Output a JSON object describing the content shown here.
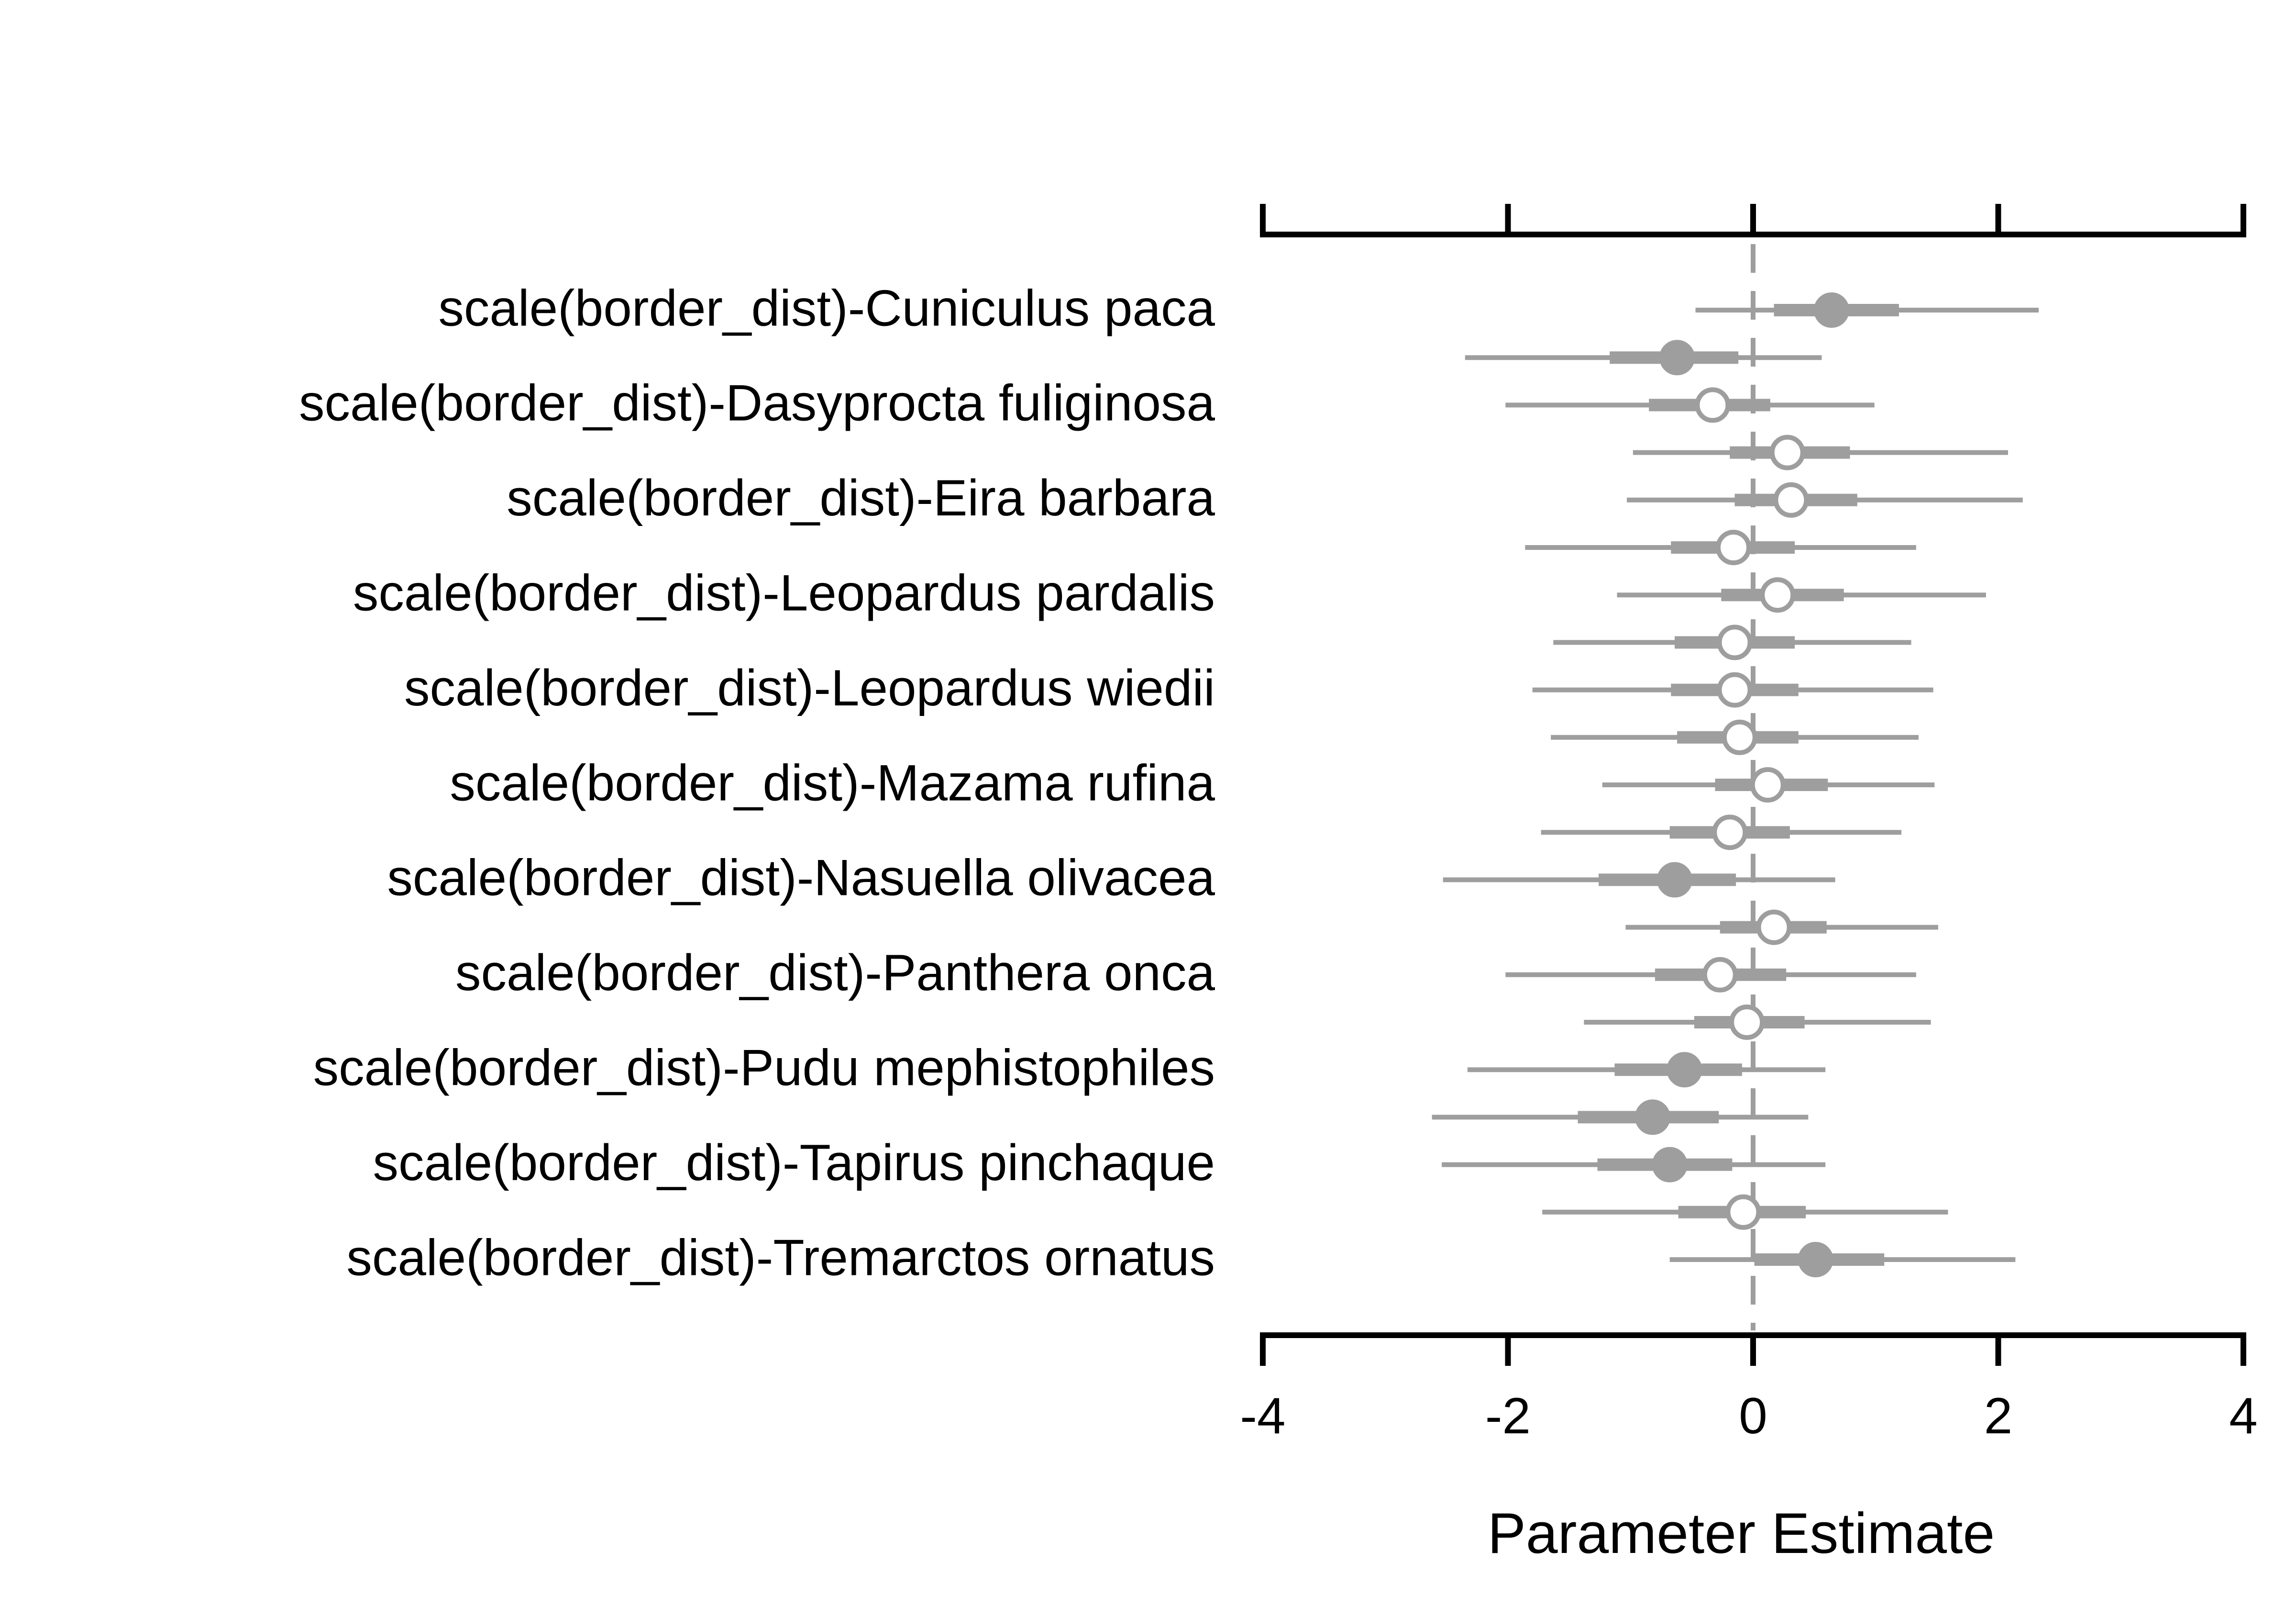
{
  "chart_data": {
    "type": "forest",
    "title": "",
    "xlabel": "Parameter Estimate",
    "ylabel": "",
    "xlim": [
      -4,
      4
    ],
    "xticks": [
      -4,
      -2,
      0,
      2,
      4
    ],
    "xtick_labels": [
      "-4",
      "-2",
      "0",
      "2",
      "4"
    ],
    "reference_line": 0,
    "grid": false,
    "colors": {
      "estimate": "#9e9e9e",
      "axis": "#000000",
      "open_fill": "#ffffff"
    },
    "labels": [
      "scale(border_dist)-Cuniculus paca",
      "scale(border_dist)-Dasyprocta fuliginosa",
      "scale(border_dist)-Eira barbara",
      "scale(border_dist)-Leopardus pardalis",
      "scale(border_dist)-Leopardus wiedii",
      "scale(border_dist)-Mazama rufina",
      "scale(border_dist)-Nasuella olivacea",
      "scale(border_dist)-Panthera onca",
      "scale(border_dist)-Pudu mephistophiles",
      "scale(border_dist)-Tapirus pinchaque",
      "scale(border_dist)-Tremarctos ornatus"
    ],
    "points": [
      {
        "est": 0.64,
        "lo95": -0.47,
        "hi95": 2.33,
        "lo50": 0.17,
        "hi50": 1.19,
        "filled": true
      },
      {
        "est": -0.62,
        "lo95": -2.35,
        "hi95": 0.56,
        "lo50": -1.17,
        "hi50": -0.12,
        "filled": true
      },
      {
        "est": -0.33,
        "lo95": -2.02,
        "hi95": 0.99,
        "lo50": -0.85,
        "hi50": 0.14,
        "filled": false
      },
      {
        "est": 0.28,
        "lo95": -0.98,
        "hi95": 2.08,
        "lo50": -0.19,
        "hi50": 0.79,
        "filled": false
      },
      {
        "est": 0.31,
        "lo95": -1.03,
        "hi95": 2.2,
        "lo50": -0.15,
        "hi50": 0.85,
        "filled": false
      },
      {
        "est": -0.16,
        "lo95": -1.86,
        "hi95": 1.33,
        "lo50": -0.67,
        "hi50": 0.34,
        "filled": false
      },
      {
        "est": 0.2,
        "lo95": -1.11,
        "hi95": 1.9,
        "lo50": -0.26,
        "hi50": 0.74,
        "filled": false
      },
      {
        "est": -0.15,
        "lo95": -1.63,
        "hi95": 1.29,
        "lo50": -0.64,
        "hi50": 0.34,
        "filled": false
      },
      {
        "est": -0.15,
        "lo95": -1.8,
        "hi95": 1.47,
        "lo50": -0.67,
        "hi50": 0.37,
        "filled": false
      },
      {
        "est": -0.11,
        "lo95": -1.65,
        "hi95": 1.35,
        "lo50": -0.62,
        "hi50": 0.37,
        "filled": false
      },
      {
        "est": 0.12,
        "lo95": -1.23,
        "hi95": 1.48,
        "lo50": -0.31,
        "hi50": 0.61,
        "filled": false
      },
      {
        "est": -0.19,
        "lo95": -1.73,
        "hi95": 1.21,
        "lo50": -0.68,
        "hi50": 0.3,
        "filled": false
      },
      {
        "est": -0.64,
        "lo95": -2.53,
        "hi95": 0.67,
        "lo50": -1.26,
        "hi50": -0.14,
        "filled": true
      },
      {
        "est": 0.17,
        "lo95": -1.04,
        "hi95": 1.51,
        "lo50": -0.27,
        "hi50": 0.6,
        "filled": false
      },
      {
        "est": -0.27,
        "lo95": -2.02,
        "hi95": 1.33,
        "lo50": -0.8,
        "hi50": 0.27,
        "filled": false
      },
      {
        "est": -0.05,
        "lo95": -1.38,
        "hi95": 1.45,
        "lo50": -0.48,
        "hi50": 0.42,
        "filled": false
      },
      {
        "est": -0.56,
        "lo95": -2.33,
        "hi95": 0.59,
        "lo50": -1.13,
        "hi50": -0.09,
        "filled": true
      },
      {
        "est": -0.82,
        "lo95": -2.62,
        "hi95": 0.45,
        "lo50": -1.43,
        "hi50": -0.28,
        "filled": true
      },
      {
        "est": -0.68,
        "lo95": -2.54,
        "hi95": 0.59,
        "lo50": -1.27,
        "hi50": -0.17,
        "filled": true
      },
      {
        "est": -0.08,
        "lo95": -1.72,
        "hi95": 1.59,
        "lo50": -0.61,
        "hi50": 0.43,
        "filled": false
      },
      {
        "est": 0.51,
        "lo95": -0.68,
        "hi95": 2.14,
        "lo50": 0.01,
        "hi50": 1.07,
        "filled": true
      }
    ]
  }
}
